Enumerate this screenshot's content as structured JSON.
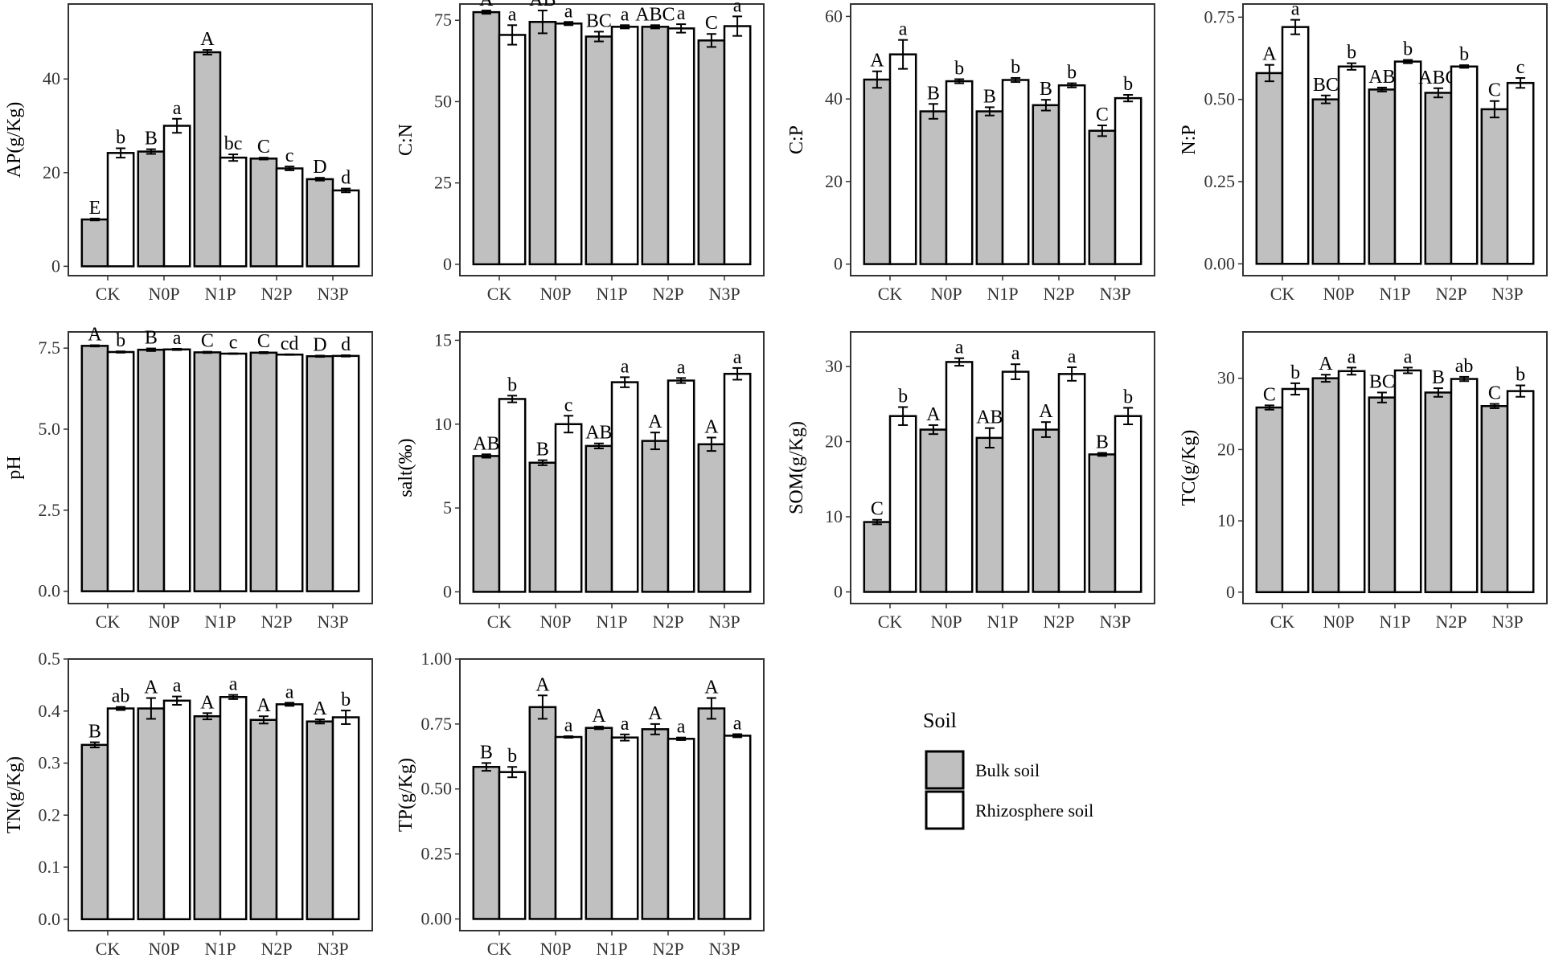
{
  "legend": {
    "title": "Soil",
    "items": [
      {
        "label": "Bulk soil",
        "color": "#c0c0c0"
      },
      {
        "label": "Rhizosphere soil",
        "color": "#ffffff"
      }
    ]
  },
  "chart_data": [
    {
      "type": "bar",
      "ylabel": "AP(g/Kg)",
      "categories": [
        "CK",
        "N0P",
        "N1P",
        "N2P",
        "N3P"
      ],
      "ylim": [
        -2,
        56
      ],
      "yticks": [
        0,
        20,
        40
      ],
      "series": [
        {
          "name": "Bulk soil",
          "values": [
            10.0,
            24.5,
            45.7,
            23.0,
            18.6
          ],
          "errors": [
            0.2,
            0.5,
            0.5,
            0.2,
            0.3
          ],
          "labels": [
            "E",
            "B",
            "A",
            "C",
            "D"
          ]
        },
        {
          "name": "Rhizosphere soil",
          "values": [
            24.2,
            30.0,
            23.2,
            20.9,
            16.2
          ],
          "errors": [
            1.0,
            1.5,
            0.7,
            0.4,
            0.4
          ],
          "labels": [
            "b",
            "a",
            "bc",
            "c",
            "d"
          ]
        }
      ]
    },
    {
      "type": "bar",
      "ylabel": "C:N",
      "categories": [
        "CK",
        "N0P",
        "N1P",
        "N2P",
        "N3P"
      ],
      "ylim": [
        -3.5,
        80
      ],
      "yticks": [
        0,
        25,
        50,
        75
      ],
      "series": [
        {
          "name": "Bulk soil",
          "values": [
            77.5,
            74.5,
            70.0,
            73.0,
            68.8
          ],
          "errors": [
            0.5,
            3.5,
            1.5,
            0.5,
            2.0
          ],
          "labels": [
            "A",
            "AB",
            "BC",
            "ABC",
            "C"
          ]
        },
        {
          "name": "Rhizosphere soil",
          "values": [
            70.5,
            74.0,
            73.0,
            72.5,
            73.2
          ],
          "errors": [
            3.0,
            0.5,
            0.5,
            1.3,
            3.0
          ],
          "labels": [
            "a",
            "a",
            "a",
            "a",
            "a"
          ]
        }
      ]
    },
    {
      "type": "bar",
      "ylabel": "C:P",
      "categories": [
        "CK",
        "N0P",
        "N1P",
        "N2P",
        "N3P"
      ],
      "ylim": [
        -2.8,
        63
      ],
      "yticks": [
        0,
        20,
        40,
        60
      ],
      "series": [
        {
          "name": "Bulk soil",
          "values": [
            44.7,
            37.0,
            37.0,
            38.5,
            32.3
          ],
          "errors": [
            2.0,
            1.8,
            1.0,
            1.3,
            1.3
          ],
          "labels": [
            "A",
            "B",
            "B",
            "B",
            "C"
          ]
        },
        {
          "name": "Rhizosphere soil",
          "values": [
            50.8,
            44.3,
            44.6,
            43.3,
            40.2
          ],
          "errors": [
            3.5,
            0.5,
            0.5,
            0.5,
            0.8
          ],
          "labels": [
            "a",
            "b",
            "b",
            "b",
            "b"
          ]
        }
      ]
    },
    {
      "type": "bar",
      "ylabel": "N:P",
      "categories": [
        "CK",
        "N0P",
        "N1P",
        "N2P",
        "N3P"
      ],
      "ylim": [
        -0.036,
        0.79
      ],
      "yticks": [
        0,
        0.25,
        0.5,
        0.75
      ],
      "ytickLabels": [
        "0.00",
        "0.25",
        "0.50",
        "0.75"
      ],
      "series": [
        {
          "name": "Bulk soil",
          "values": [
            0.58,
            0.5,
            0.53,
            0.52,
            0.47
          ],
          "errors": [
            0.025,
            0.012,
            0.006,
            0.014,
            0.025
          ],
          "labels": [
            "A",
            "BC",
            "AB",
            "ABC",
            "C"
          ]
        },
        {
          "name": "Rhizosphere soil",
          "values": [
            0.72,
            0.6,
            0.615,
            0.6,
            0.55
          ],
          "errors": [
            0.022,
            0.01,
            0.005,
            0.004,
            0.015
          ],
          "labels": [
            "a",
            "b",
            "b",
            "b",
            "c"
          ]
        }
      ]
    },
    {
      "type": "bar",
      "ylabel": "pH",
      "categories": [
        "CK",
        "N0P",
        "N1P",
        "N2P",
        "N3P"
      ],
      "ylim": [
        -0.38,
        8.0
      ],
      "yticks": [
        0,
        2.5,
        5,
        7.5
      ],
      "ytickLabels": [
        "0.0",
        "2.5",
        "5.0",
        "7.5"
      ],
      "series": [
        {
          "name": "Bulk soil",
          "values": [
            7.57,
            7.45,
            7.37,
            7.36,
            7.25
          ],
          "errors": [
            0.02,
            0.04,
            0.02,
            0.02,
            0.02
          ],
          "labels": [
            "A",
            "B",
            "C",
            "C",
            "D"
          ]
        },
        {
          "name": "Rhizosphere soil",
          "values": [
            7.38,
            7.46,
            7.33,
            7.3,
            7.26
          ],
          "errors": [
            0.02,
            0.02,
            0.01,
            0.01,
            0.02
          ],
          "labels": [
            "b",
            "a",
            "c",
            "cd",
            "d"
          ]
        }
      ]
    },
    {
      "type": "bar",
      "ylabel": "salt(‰)",
      "categories": [
        "CK",
        "N0P",
        "N1P",
        "N2P",
        "N3P"
      ],
      "ylim": [
        -0.7,
        15.5
      ],
      "yticks": [
        0,
        5,
        10,
        15
      ],
      "series": [
        {
          "name": "Bulk soil",
          "values": [
            8.1,
            7.7,
            8.7,
            9.0,
            8.8
          ],
          "errors": [
            0.1,
            0.15,
            0.15,
            0.5,
            0.4
          ],
          "labels": [
            "AB",
            "B",
            "AB",
            "A",
            "A"
          ]
        },
        {
          "name": "Rhizosphere soil",
          "values": [
            11.5,
            10.0,
            12.5,
            12.6,
            13.0
          ],
          "errors": [
            0.2,
            0.5,
            0.3,
            0.15,
            0.35
          ],
          "labels": [
            "b",
            "c",
            "a",
            "a",
            "a"
          ]
        }
      ]
    },
    {
      "type": "bar",
      "ylabel": "SOM(g/Kg)",
      "categories": [
        "CK",
        "N0P",
        "N1P",
        "N2P",
        "N3P"
      ],
      "ylim": [
        -1.55,
        34.6
      ],
      "yticks": [
        0,
        10,
        20,
        30
      ],
      "series": [
        {
          "name": "Bulk soil",
          "values": [
            9.3,
            21.6,
            20.5,
            21.6,
            18.3
          ],
          "errors": [
            0.3,
            0.6,
            1.3,
            1.0,
            0.2
          ],
          "labels": [
            "C",
            "A",
            "AB",
            "A",
            "B"
          ]
        },
        {
          "name": "Rhizosphere soil",
          "values": [
            23.4,
            30.6,
            29.3,
            29.0,
            23.4
          ],
          "errors": [
            1.2,
            0.5,
            1.0,
            0.9,
            1.1
          ],
          "labels": [
            "b",
            "a",
            "a",
            "a",
            "b"
          ]
        }
      ]
    },
    {
      "type": "bar",
      "ylabel": "TC(g/Kg)",
      "categories": [
        "CK",
        "N0P",
        "N1P",
        "N2P",
        "N3P"
      ],
      "ylim": [
        -1.6,
        36.5
      ],
      "yticks": [
        0,
        10,
        20,
        30
      ],
      "series": [
        {
          "name": "Bulk soil",
          "values": [
            25.9,
            30.0,
            27.3,
            28.0,
            26.1
          ],
          "errors": [
            0.3,
            0.5,
            0.7,
            0.6,
            0.3
          ],
          "labels": [
            "C",
            "A",
            "BC",
            "B",
            "C"
          ]
        },
        {
          "name": "Rhizosphere soil",
          "values": [
            28.5,
            31.0,
            31.1,
            29.9,
            28.2
          ],
          "errors": [
            0.8,
            0.5,
            0.4,
            0.3,
            0.8
          ],
          "labels": [
            "b",
            "a",
            "a",
            "ab",
            "b"
          ]
        }
      ]
    },
    {
      "type": "bar",
      "ylabel": "TN(g/Kg)",
      "categories": [
        "CK",
        "N0P",
        "N1P",
        "N2P",
        "N3P"
      ],
      "ylim": [
        -0.022,
        0.5
      ],
      "yticks": [
        0,
        0.1,
        0.2,
        0.3,
        0.4,
        0.5
      ],
      "ytickLabels": [
        "0.0",
        "0.1",
        "0.2",
        "0.3",
        "0.4",
        "0.5"
      ],
      "series": [
        {
          "name": "Bulk soil",
          "values": [
            0.335,
            0.405,
            0.39,
            0.383,
            0.38
          ],
          "errors": [
            0.005,
            0.02,
            0.006,
            0.007,
            0.004
          ],
          "labels": [
            "B",
            "A",
            "A",
            "A",
            "A"
          ]
        },
        {
          "name": "Rhizosphere soil",
          "values": [
            0.405,
            0.42,
            0.427,
            0.413,
            0.388
          ],
          "errors": [
            0.003,
            0.008,
            0.004,
            0.003,
            0.013
          ],
          "labels": [
            "ab",
            "a",
            "a",
            "a",
            "b"
          ]
        }
      ]
    },
    {
      "type": "bar",
      "ylabel": "TP(g/Kg)",
      "categories": [
        "CK",
        "N0P",
        "N1P",
        "N2P",
        "N3P"
      ],
      "ylim": [
        -0.045,
        1.0
      ],
      "yticks": [
        0,
        0.25,
        0.5,
        0.75,
        1.0
      ],
      "ytickLabels": [
        "0.00",
        "0.25",
        "0.50",
        "0.75",
        "1.00"
      ],
      "series": [
        {
          "name": "Bulk soil",
          "values": [
            0.585,
            0.815,
            0.735,
            0.73,
            0.81
          ],
          "errors": [
            0.015,
            0.045,
            0.005,
            0.02,
            0.04
          ],
          "labels": [
            "B",
            "A",
            "A",
            "A",
            "A"
          ]
        },
        {
          "name": "Rhizosphere soil",
          "values": [
            0.565,
            0.7,
            0.698,
            0.693,
            0.705
          ],
          "errors": [
            0.02,
            0.003,
            0.012,
            0.005,
            0.006
          ],
          "labels": [
            "b",
            "a",
            "a",
            "a",
            "a"
          ]
        }
      ]
    }
  ]
}
